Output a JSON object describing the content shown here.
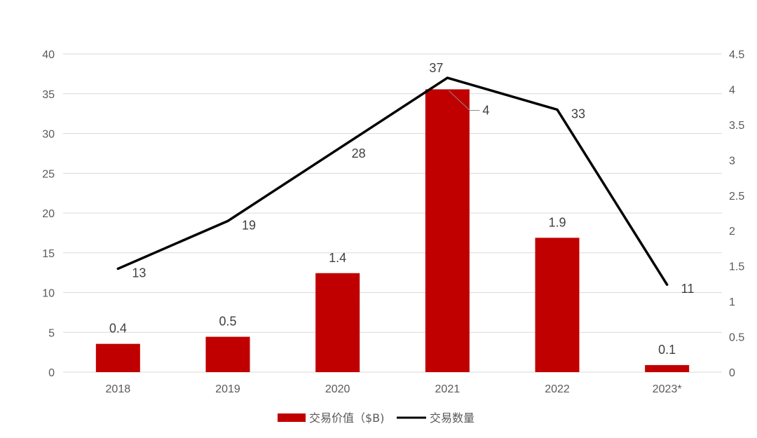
{
  "chart_data": {
    "type": "bar+line",
    "categories": [
      "2018",
      "2019",
      "2020",
      "2021",
      "2022",
      "2023*"
    ],
    "series": [
      {
        "name": "交易价值（$B)",
        "type": "bar",
        "axis": "right",
        "values": [
          0.4,
          0.5,
          1.4,
          4,
          1.9,
          0.1
        ],
        "color": "#c00000"
      },
      {
        "name": "交易数量",
        "type": "line",
        "axis": "left",
        "values": [
          13,
          19,
          28,
          37,
          33,
          11
        ],
        "color": "#000000"
      }
    ],
    "left_axis": {
      "min": 0,
      "max": 40,
      "step": 5,
      "ticks": [
        "0",
        "5",
        "10",
        "15",
        "20",
        "25",
        "30",
        "35",
        "40"
      ]
    },
    "right_axis": {
      "min": 0,
      "max": 4.5,
      "step": 0.5,
      "ticks": [
        "0",
        "0.5",
        "1",
        "1.5",
        "2",
        "2.5",
        "3",
        "3.5",
        "4",
        "4.5"
      ]
    },
    "grid": true,
    "legend": "bottom",
    "title": "",
    "xlabel": "",
    "ylabel": ""
  }
}
